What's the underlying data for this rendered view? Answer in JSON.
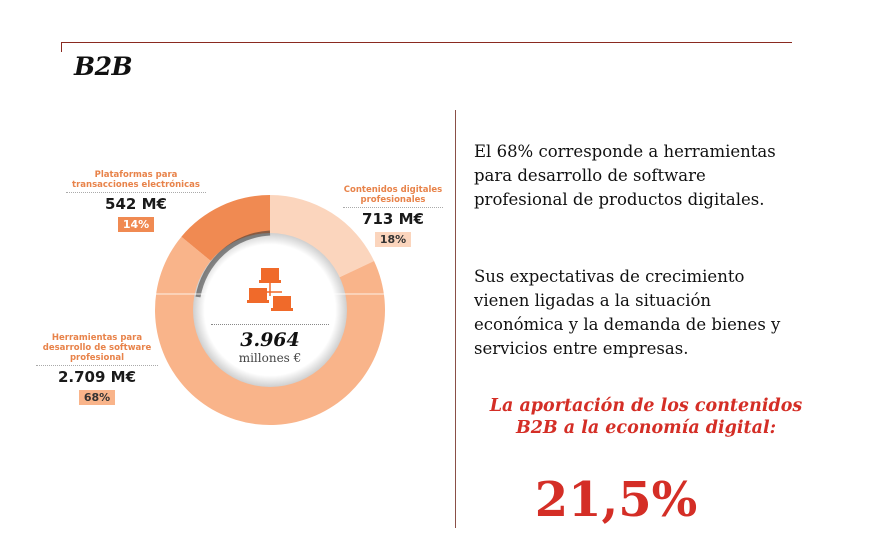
{
  "header": {
    "title": "B2B"
  },
  "chart_data": {
    "type": "pie",
    "subtype": "donut",
    "title": "",
    "total": {
      "value": "3.964",
      "unit": "millones €"
    },
    "center_icon": "network-computers-icon",
    "slices": [
      {
        "label": "Contenidos digitales profesionales",
        "value_label": "713 M€",
        "value": 713,
        "percent_label": "18%",
        "percent": 18,
        "color": "#fbd5bd"
      },
      {
        "label": "Herramientas para desarrollo de software profesional",
        "value_label": "2.709 M€",
        "value": 2709,
        "percent_label": "68%",
        "percent": 68,
        "color": "#f9b48a"
      },
      {
        "label": "Plataformas para transacciones electrónicas",
        "value_label": "542 M€",
        "value": 542,
        "percent_label": "14%",
        "percent": 14,
        "color": "#f08a52"
      }
    ]
  },
  "labels": {
    "plataformas": {
      "line1": "Plataformas para",
      "line2": "transacciones electrónicas"
    },
    "contenidos": {
      "line1": "Contenidos digitales",
      "line2": "profesionales"
    },
    "herramientas": {
      "line1": "Herramientas para",
      "line2": "desarrollo de software",
      "line3": "profesional"
    }
  },
  "text": {
    "paragraph1": "El 68% corresponde a herramientas para desarrollo de software profesional de productos digitales.",
    "paragraph2": "Sus expectativas de crecimiento vienen ligadas a la situación económica y la demanda de bienes y servicios entre empresas.",
    "highlight": "La aportación de los contenidos B2B a la economía digital:",
    "big_number": "21,5%"
  },
  "colors": {
    "accent_red": "#d42e26",
    "rule": "#8a2a20"
  }
}
